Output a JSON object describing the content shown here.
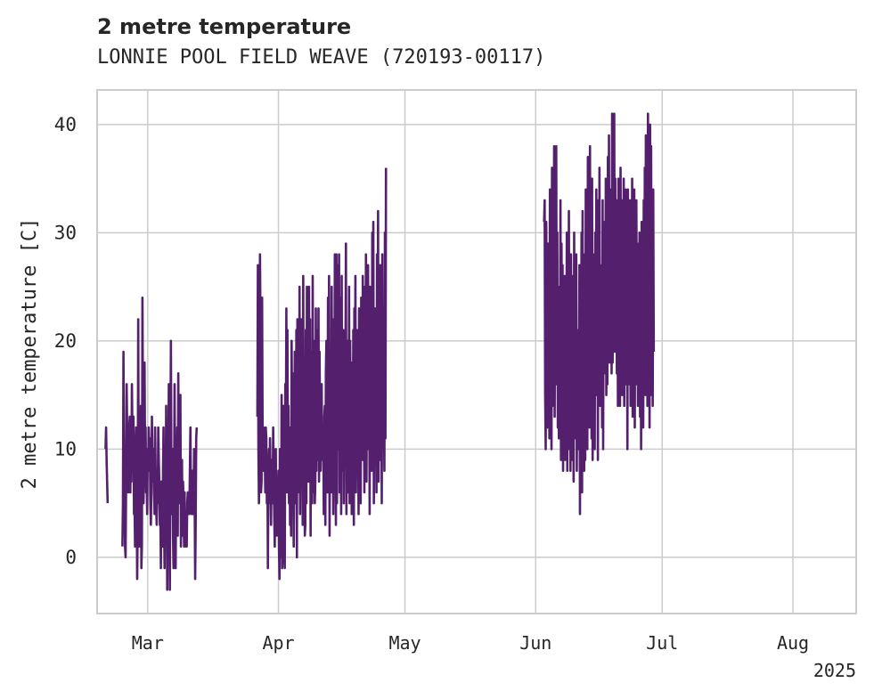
{
  "chart_data": {
    "type": "line",
    "title": "2 metre temperature",
    "subtitle": "LONNIE POOL FIELD WEAVE (720193-00117)",
    "xlabel": "",
    "ylabel": "2 metre temperature [C]",
    "x_range": [
      "2025-02-17",
      "2025-08-16"
    ],
    "ylim": [
      -5.2,
      43.2
    ],
    "y_ticks": [
      0,
      10,
      20,
      30,
      40
    ],
    "y_tick_labels": [
      "0",
      "10",
      "20",
      "30",
      "40"
    ],
    "x_ticks": [
      "2025-03-01",
      "2025-04-01",
      "2025-05-01",
      "2025-06-01",
      "2025-07-01",
      "2025-08-01"
    ],
    "x_tick_labels": [
      "Mar",
      "Apr",
      "May",
      "Jun",
      "Jul",
      "Aug"
    ],
    "x_offset_label": "2025",
    "grid": true,
    "line_color": "#54206e",
    "series": [
      {
        "sampling": "3-hourly",
        "segments": [
          {
            "start": "2025-02-19T00:00",
            "values": [
              10,
              12,
              9,
              7,
              5
            ]
          },
          {
            "start": "2025-02-23T00:00",
            "values": [
              1,
              5,
              19,
              10,
              6,
              1,
              0,
              7,
              16,
              12,
              8,
              6,
              9,
              12,
              13,
              6,
              11,
              7,
              16,
              11,
              8,
              13,
              4,
              5,
              1,
              10,
              12,
              6,
              -2,
              3,
              22,
              6,
              1,
              9,
              8,
              14,
              -1,
              1,
              24,
              13,
              5,
              8,
              18,
              9,
              12,
              6,
              7,
              4,
              10,
              8,
              12,
              10,
              11,
              5,
              3,
              6,
              13,
              9,
              7,
              10,
              6,
              4,
              12,
              8,
              5,
              3,
              6,
              5,
              12,
              9,
              7,
              3,
              4,
              -1,
              7,
              6,
              1,
              8,
              12,
              3,
              -1,
              9,
              5,
              14,
              8,
              -3,
              11,
              6,
              16,
              4,
              -3,
              10,
              20,
              7,
              4,
              10,
              2,
              -1,
              6,
              16,
              5,
              -1,
              8,
              6,
              12,
              2,
              17,
              6,
              5,
              8,
              15,
              1,
              6,
              9,
              2,
              7,
              5,
              1,
              6,
              2,
              1,
              4,
              1,
              5,
              6,
              4,
              6,
              4,
              8,
              12,
              6,
              4,
              8,
              4,
              8,
              4,
              10,
              6,
              -2,
              3,
              11,
              12
            ]
          },
          {
            "start": "2025-03-27T00:00",
            "values": [
              13,
              27,
              10,
              5,
              9,
              28,
              21,
              6,
              7,
              24,
              11,
              8,
              12,
              8,
              10,
              6,
              12,
              11,
              5,
              9,
              -1,
              8,
              10,
              5,
              11,
              7,
              3,
              9,
              6,
              5,
              12,
              8,
              4,
              1,
              8,
              10,
              3,
              2,
              6,
              5,
              8,
              1,
              -2,
              10,
              6,
              0,
              15,
              -1,
              8,
              14,
              1,
              0,
              -1,
              16,
              8,
              23,
              6,
              21,
              8,
              14,
              5,
              12,
              3,
              10,
              2,
              20,
              12,
              17,
              8,
              1,
              9,
              19,
              15,
              5,
              21,
              0,
              22,
              13,
              17,
              6,
              25,
              4,
              11,
              22,
              10,
              18,
              3,
              26,
              9,
              16,
              2,
              3,
              21,
              5,
              25,
              11,
              15,
              7,
              25,
              9,
              22,
              2,
              19,
              17,
              5,
              26,
              6,
              20,
              15,
              5,
              7,
              23,
              8,
              21,
              9,
              11,
              23,
              7,
              19,
              12,
              8,
              11,
              16,
              9,
              10,
              12,
              4,
              13,
              14,
              3,
              17,
              20,
              16,
              6,
              24,
              9,
              26,
              2,
              18,
              12,
              6,
              25,
              10,
              22,
              4,
              10,
              9,
              28,
              18,
              3,
              28,
              5,
              27,
              15,
              10,
              28,
              6,
              24,
              18,
              4,
              26,
              8,
              13,
              21,
              5,
              13,
              11,
              15,
              29,
              4,
              17,
              20,
              12,
              6,
              25,
              5,
              20,
              13,
              16,
              4,
              18,
              8,
              21,
              3,
              23,
              10,
              26,
              6,
              13,
              21,
              11,
              14,
              4,
              23,
              12,
              19,
              5,
              24,
              13,
              9,
              26,
              10,
              19,
              6,
              25,
              12,
              28,
              7,
              17,
              10,
              27,
              13,
              20,
              4,
              25,
              11,
              22,
              8,
              30,
              9,
              31,
              5,
              14,
              23,
              10,
              20,
              6,
              28,
              12,
              32,
              7,
              24,
              9,
              27,
              13,
              19,
              5,
              28,
              10,
              22,
              14,
              8,
              30,
              11,
              36
            ]
          },
          {
            "start": "2025-06-03T00:00",
            "values": [
              31,
              33,
              15,
              10,
              31,
              22,
              12,
              29,
              13,
              24,
              11,
              34,
              15,
              26,
              10,
              36,
              14,
              32,
              17,
              38,
              13,
              28,
              18,
              38,
              16,
              30,
              12,
              25,
              11,
              23,
              13,
              33,
              9,
              29,
              17,
              27,
              8,
              22,
              11,
              26,
              9,
              20,
              12,
              30,
              8,
              24,
              16,
              32,
              10,
              21,
              8,
              28,
              13,
              26,
              9,
              22,
              7,
              30,
              11,
              25,
              14,
              28,
              8,
              21,
              12,
              20,
              10,
              27,
              4,
              23,
              15,
              30,
              6,
              32,
              11,
              24,
              8,
              28,
              9,
              34,
              13,
              25,
              10,
              37,
              16,
              31,
              12,
              38,
              17,
              29,
              11,
              35,
              9,
              23,
              14,
              28,
              10,
              30,
              19,
              34,
              15,
              33,
              9,
              28,
              20,
              36,
              14,
              27,
              16,
              24,
              12,
              33,
              10,
              29,
              17,
              31,
              18,
              35,
              15,
              28,
              16,
              37,
              20,
              39,
              18,
              33,
              21,
              34,
              17,
              41,
              18,
              30,
              22,
              41,
              19,
              35,
              23,
              32,
              17,
              33,
              14,
              35,
              21,
              34,
              14,
              36,
              18,
              28,
              15,
              33,
              19,
              35,
              14,
              31,
              16,
              34,
              18,
              30,
              10,
              34,
              20,
              29,
              16,
              33,
              14,
              30,
              15,
              35,
              13,
              31,
              18,
              34,
              12,
              32,
              16,
              33,
              19,
              29,
              14,
              28,
              17,
              30,
              13,
              27,
              10,
              31,
              15,
              29,
              12,
              33,
              16,
              36,
              15,
              39,
              17,
              37,
              14,
              41,
              18,
              34,
              12,
              40,
              15,
              38,
              16,
              32,
              14,
              34,
              19
            ]
          }
        ]
      }
    ]
  }
}
